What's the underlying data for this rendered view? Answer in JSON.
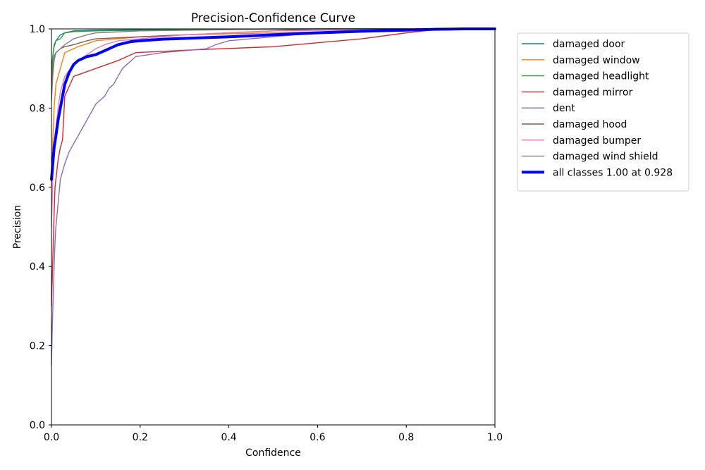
{
  "chart_data": {
    "type": "line",
    "title": "Precision-Confidence Curve",
    "xlabel": "Confidence",
    "ylabel": "Precision",
    "xlim": [
      0,
      1
    ],
    "ylim": [
      0,
      1
    ],
    "xticks": [
      "0.0",
      "0.2",
      "0.4",
      "0.6",
      "0.8",
      "1.0"
    ],
    "yticks": [
      "0.0",
      "0.2",
      "0.4",
      "0.6",
      "0.8",
      "1.0"
    ],
    "grid": false,
    "legend_position": "outside-right",
    "series": [
      {
        "name": "damaged door",
        "color": "#1f77b4",
        "x": [
          0.0,
          0.005,
          0.01,
          0.02,
          0.03,
          0.05,
          0.1,
          0.2,
          0.4,
          0.6,
          0.8,
          1.0
        ],
        "y": [
          0.9,
          0.95,
          0.97,
          0.985,
          0.99,
          0.995,
          0.997,
          0.998,
          0.999,
          1.0,
          1.0,
          1.0
        ]
      },
      {
        "name": "damaged window",
        "color": "#ff7f0e",
        "x": [
          0.0,
          0.003,
          0.006,
          0.01,
          0.015,
          0.02,
          0.025,
          0.03,
          0.06,
          0.1,
          0.15,
          0.2,
          0.3,
          0.5,
          0.7,
          1.0
        ],
        "y": [
          0.6,
          0.72,
          0.8,
          0.86,
          0.88,
          0.9,
          0.92,
          0.94,
          0.955,
          0.97,
          0.975,
          0.98,
          0.985,
          0.99,
          0.995,
          1.0
        ]
      },
      {
        "name": "damaged headlight",
        "color": "#2ca02c",
        "x": [
          0.0,
          0.003,
          0.006,
          0.01,
          0.02,
          0.03,
          0.05,
          0.1,
          0.3,
          0.5,
          1.0
        ],
        "y": [
          0.87,
          0.93,
          0.96,
          0.97,
          0.975,
          0.99,
          0.993,
          0.995,
          0.998,
          1.0,
          1.0
        ]
      },
      {
        "name": "damaged mirror",
        "color": "#d62728",
        "x": [
          0.0,
          0.003,
          0.005,
          0.008,
          0.012,
          0.015,
          0.02,
          0.025,
          0.03,
          0.05,
          0.1,
          0.15,
          0.19,
          0.3,
          0.5,
          0.7,
          0.8,
          0.88,
          1.0
        ],
        "y": [
          0.3,
          0.42,
          0.5,
          0.6,
          0.64,
          0.67,
          0.7,
          0.72,
          0.83,
          0.88,
          0.9,
          0.92,
          0.94,
          0.946,
          0.955,
          0.975,
          0.99,
          1.0,
          1.0
        ]
      },
      {
        "name": "dent",
        "color": "#9467bd",
        "x": [
          0.0,
          0.002,
          0.004,
          0.006,
          0.008,
          0.01,
          0.015,
          0.02,
          0.03,
          0.04,
          0.05,
          0.06,
          0.07,
          0.08,
          0.09,
          0.1,
          0.12,
          0.13,
          0.14,
          0.15,
          0.16,
          0.17,
          0.19,
          0.22,
          0.25,
          0.3,
          0.35,
          0.37,
          0.4,
          0.5,
          0.6,
          0.7,
          0.8,
          0.9,
          1.0
        ],
        "y": [
          0.15,
          0.25,
          0.33,
          0.4,
          0.46,
          0.5,
          0.56,
          0.62,
          0.66,
          0.69,
          0.71,
          0.73,
          0.75,
          0.77,
          0.79,
          0.81,
          0.83,
          0.85,
          0.86,
          0.88,
          0.9,
          0.91,
          0.93,
          0.935,
          0.94,
          0.945,
          0.95,
          0.96,
          0.97,
          0.98,
          0.99,
          0.995,
          1.0,
          1.0,
          1.0
        ]
      },
      {
        "name": "damaged hood",
        "color": "#8c564b",
        "x": [
          0.0,
          0.003,
          0.006,
          0.01,
          0.02,
          0.03,
          0.05,
          0.08,
          0.1,
          0.2,
          0.4,
          0.6,
          1.0
        ],
        "y": [
          0.85,
          0.9,
          0.93,
          0.94,
          0.95,
          0.955,
          0.96,
          0.97,
          0.975,
          0.98,
          0.99,
          1.0,
          1.0
        ]
      },
      {
        "name": "damaged bumper",
        "color": "#e377c2",
        "x": [
          0.0,
          0.003,
          0.006,
          0.01,
          0.015,
          0.02,
          0.03,
          0.05,
          0.08,
          0.1,
          0.12,
          0.15,
          0.2,
          0.3,
          0.5,
          1.0
        ],
        "y": [
          0.5,
          0.62,
          0.7,
          0.75,
          0.8,
          0.84,
          0.88,
          0.91,
          0.935,
          0.95,
          0.96,
          0.97,
          0.975,
          0.985,
          0.995,
          1.0
        ]
      },
      {
        "name": "damaged wind shield",
        "color": "#7f7f7f",
        "x": [
          0.0,
          0.003,
          0.006,
          0.01,
          0.02,
          0.03,
          0.05,
          0.08,
          0.1,
          0.2,
          0.4,
          0.6,
          1.0
        ],
        "y": [
          0.82,
          0.88,
          0.92,
          0.94,
          0.95,
          0.96,
          0.975,
          0.985,
          0.99,
          0.995,
          0.998,
          1.0,
          1.0
        ]
      },
      {
        "name": "all classes 1.00 at 0.928",
        "color": "#0000ff",
        "bold": true,
        "x": [
          0.0,
          0.003,
          0.006,
          0.01,
          0.015,
          0.02,
          0.025,
          0.03,
          0.04,
          0.05,
          0.06,
          0.08,
          0.1,
          0.12,
          0.15,
          0.18,
          0.2,
          0.25,
          0.3,
          0.4,
          0.5,
          0.6,
          0.7,
          0.8,
          0.87,
          0.928,
          1.0
        ],
        "y": [
          0.62,
          0.66,
          0.7,
          0.73,
          0.77,
          0.8,
          0.83,
          0.86,
          0.89,
          0.91,
          0.92,
          0.93,
          0.935,
          0.945,
          0.96,
          0.968,
          0.97,
          0.974,
          0.976,
          0.98,
          0.985,
          0.99,
          0.994,
          0.997,
          0.999,
          1.0,
          1.0
        ]
      }
    ]
  }
}
